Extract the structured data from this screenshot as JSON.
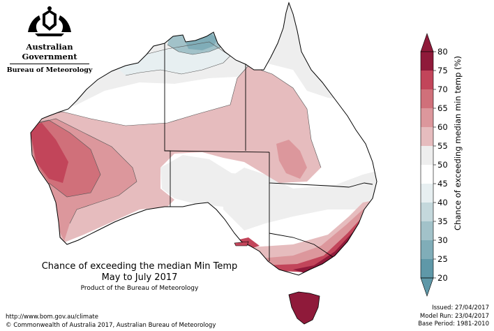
{
  "logo": {
    "title": "Australian Government",
    "subtitle": "Bureau of Meteorology",
    "emblem_icon": "commonwealth-coat-of-arms"
  },
  "map": {
    "title": "Chance of exceeding the median Min Temp",
    "period": "May to July 2017",
    "product_note": "Product of the Bureau of Meteorology"
  },
  "legend": {
    "title": "Chance of exceeding median min temp (%)",
    "ticks": [
      "80",
      "75",
      "70",
      "65",
      "60",
      "55",
      "50",
      "45",
      "40",
      "35",
      "30",
      "25",
      "20"
    ],
    "colors": [
      "#8f1a3a",
      "#c2455a",
      "#d0707a",
      "#dc979c",
      "#e6bcbe",
      "#eeeeee",
      "#ffffff",
      "#e7eff1",
      "#c4d8dc",
      "#a2c2c9",
      "#80adb8",
      "#5f98a8"
    ],
    "top_arrow_color": "#8f1a3a",
    "bottom_arrow_color": "#5f98a8"
  },
  "footer": {
    "url": "http://www.bom.gov.au/climate",
    "copyright": "© Commonwealth of Australia 2017, Australian Bureau of Meteorology",
    "issued": "Issued: 27/04/2017",
    "model_run": "Model Run: 23/04/2017",
    "base_period": "Base Period: 1981-2010"
  }
}
